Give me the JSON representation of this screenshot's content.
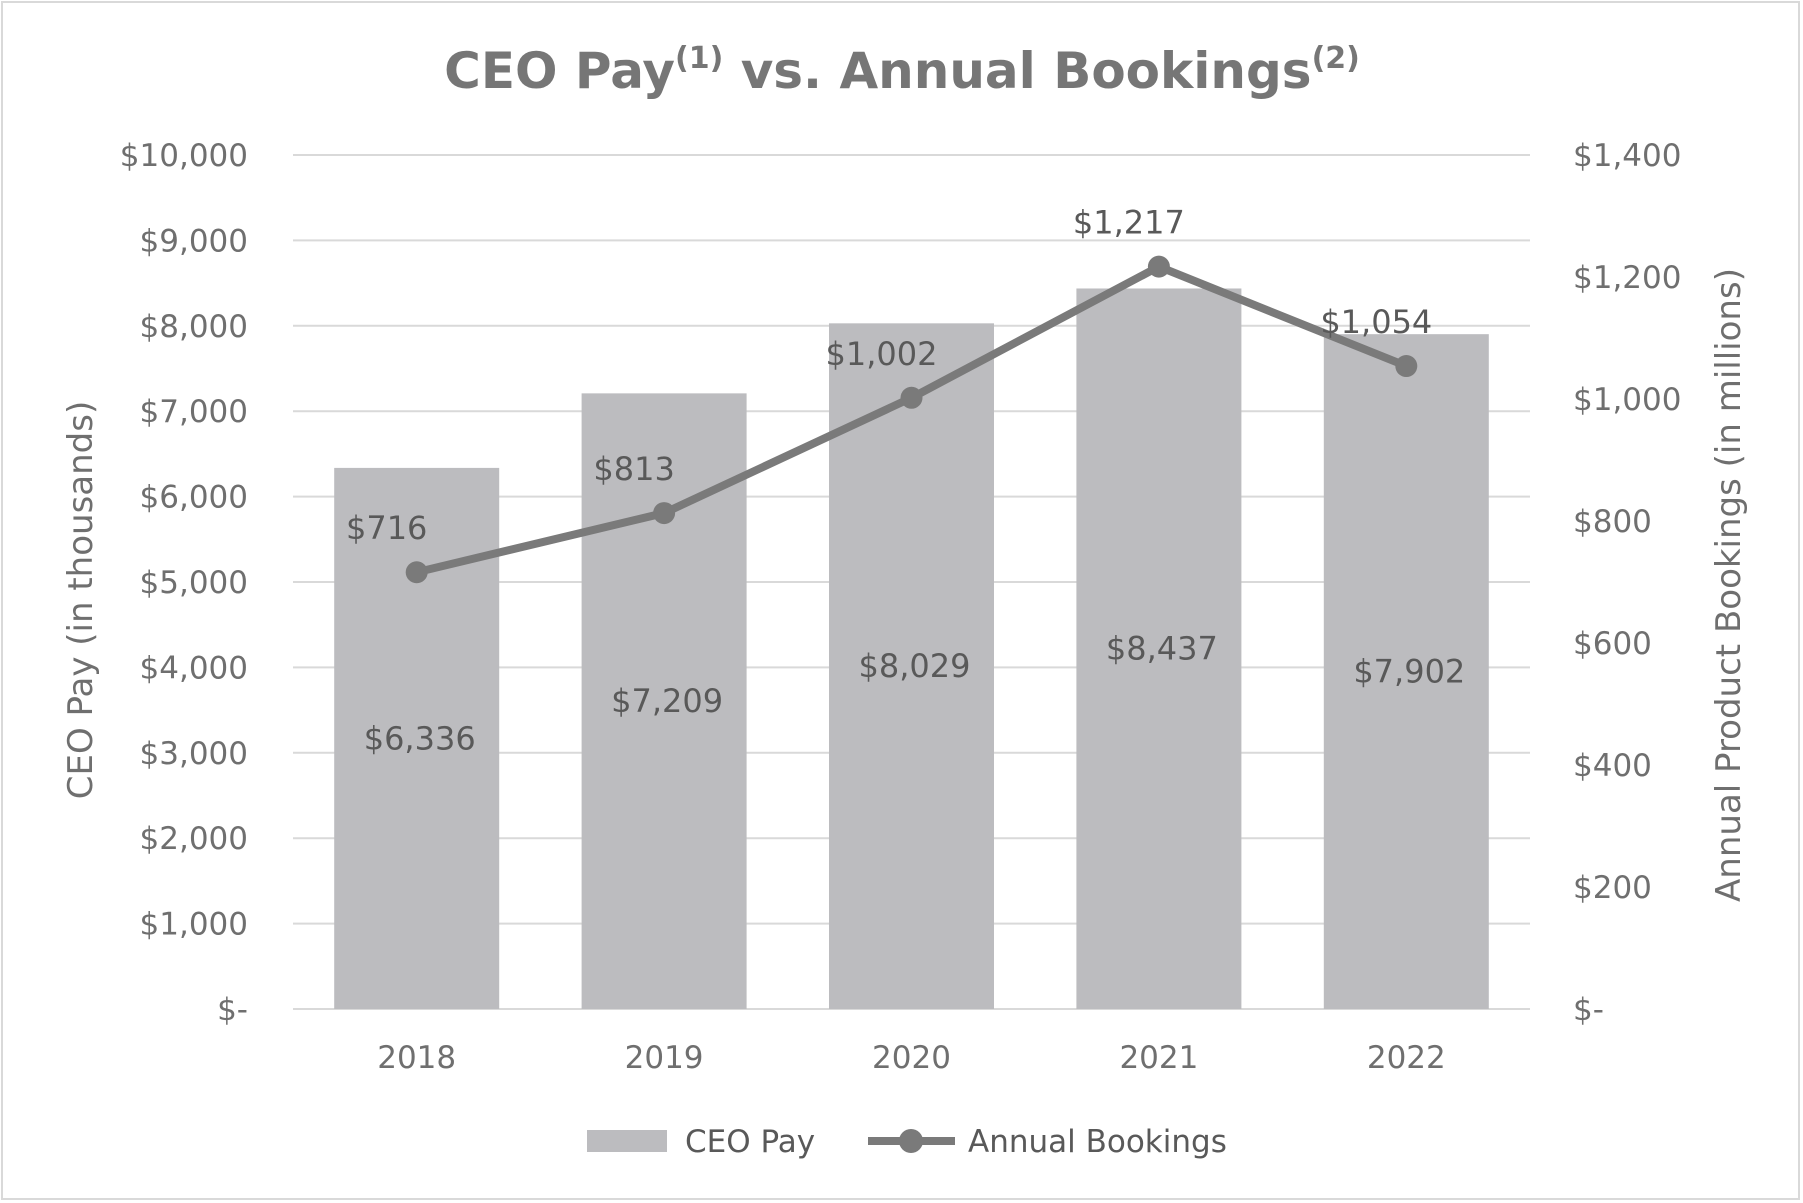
{
  "chart_data": {
    "type": "bar+line",
    "title": "CEO Pay vs. Annual Bookings",
    "title_parts": {
      "part1": "CEO Pay",
      "sup1": "(1)",
      "part2": " vs. Annual Bookings",
      "sup2": "(2)"
    },
    "categories": [
      "2018",
      "2019",
      "2020",
      "2021",
      "2022"
    ],
    "series": [
      {
        "name": "CEO Pay",
        "type": "bar",
        "axis": "left",
        "values": [
          6336,
          7209,
          8029,
          8437,
          7902
        ],
        "labels": [
          "$6,336",
          "$7,209",
          "$8,029",
          "$8,437",
          "$7,902"
        ],
        "color": "#bcbcbf"
      },
      {
        "name": "Annual Bookings",
        "type": "line",
        "axis": "right",
        "values": [
          716,
          813,
          1002,
          1217,
          1054
        ],
        "labels": [
          "$716",
          "$813",
          "$1,002",
          "$1,217",
          "$1,054"
        ],
        "color": "#7a7a7a"
      }
    ],
    "y_left": {
      "label": "CEO Pay (in thousands)",
      "ylim": [
        0,
        10000
      ],
      "ticks": [
        0,
        1000,
        2000,
        3000,
        4000,
        5000,
        6000,
        7000,
        8000,
        9000,
        10000
      ],
      "tick_labels": [
        "$-",
        "$1,000",
        "$2,000",
        "$3,000",
        "$4,000",
        "$5,000",
        "$6,000",
        "$7,000",
        "$8,000",
        "$9,000",
        "$10,000"
      ]
    },
    "y_right": {
      "label": "Annual Product Bookings (in millions)",
      "ylim": [
        0,
        1400
      ],
      "ticks": [
        0,
        200,
        400,
        600,
        800,
        1000,
        1200,
        1400
      ],
      "tick_labels": [
        "$-",
        "$200",
        "$400",
        "$600",
        "$800",
        "$1,000",
        "$1,200",
        "$1,400"
      ]
    },
    "grid": true,
    "legend": {
      "position": "bottom",
      "entries": [
        "CEO Pay",
        "Annual Bookings"
      ]
    },
    "gridline_color": "#d9d9d9"
  }
}
